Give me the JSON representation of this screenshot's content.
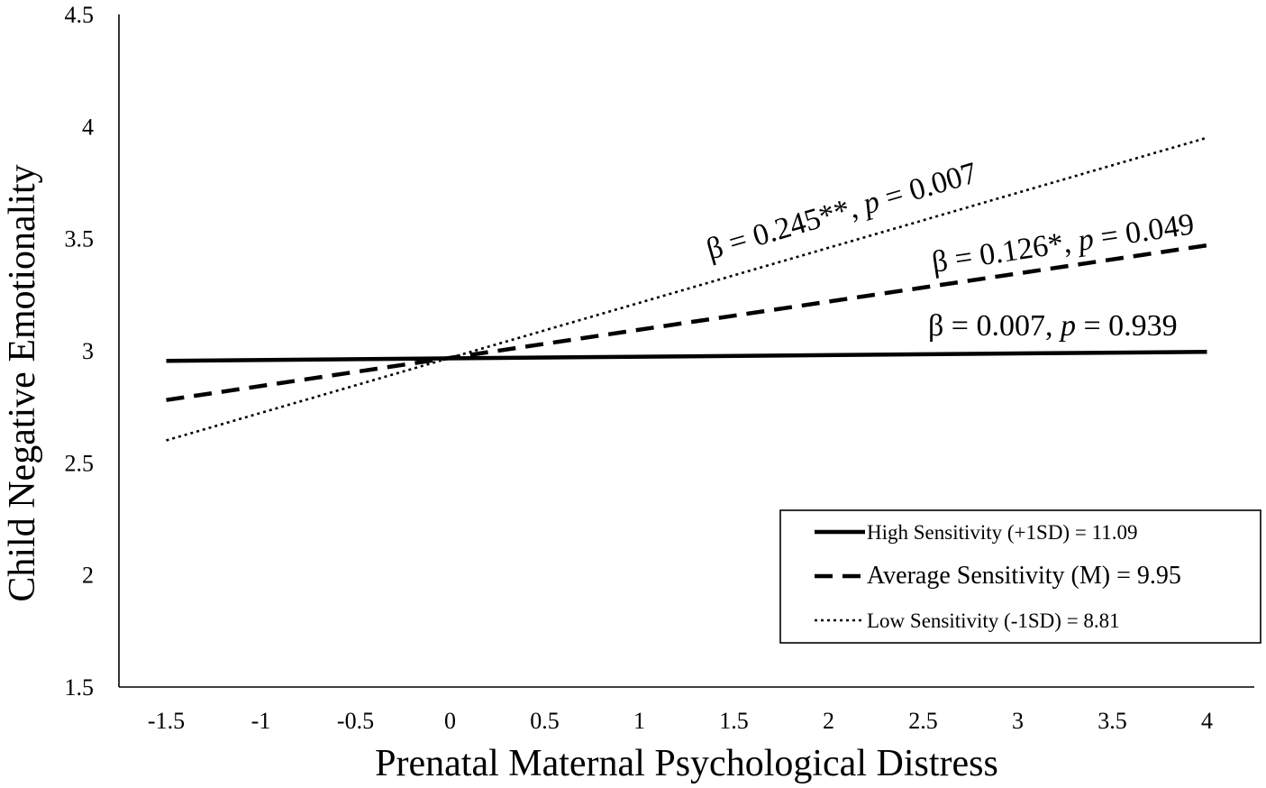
{
  "chart_data": {
    "type": "line",
    "title": "",
    "xlabel": "Prenatal Maternal Psychological Distress",
    "ylabel": "Child Negative Emotionality",
    "xlim": [
      -1.75,
      4.25
    ],
    "ylim": [
      1.5,
      4.5
    ],
    "x_ticks": [
      -1.5,
      -1,
      -0.5,
      0,
      0.5,
      1,
      1.5,
      2,
      2.5,
      3,
      3.5,
      4
    ],
    "x_tick_labels": [
      "-1.5",
      "-1",
      "-0.5",
      "0",
      "0.5",
      "1",
      "1.5",
      "2",
      "2.5",
      "3",
      "3.5",
      "4"
    ],
    "y_ticks": [
      1.5,
      2,
      2.5,
      3,
      3.5,
      4,
      4.5
    ],
    "y_tick_labels": [
      "1.5",
      "2",
      "2.5",
      "3",
      "3.5",
      "4",
      "4.5"
    ],
    "grid": false,
    "legend_position": "bottom-right",
    "series": [
      {
        "name": "High Sensitivity (+1SD) = 11.09",
        "style": "solid",
        "color": "#000000",
        "x": [
          -1.5,
          4
        ],
        "y": [
          2.955,
          2.995
        ],
        "annotation": {
          "beta": "β = 0.007, ",
          "p_label": "p",
          "p_value": " = 0.939"
        }
      },
      {
        "name": "Average Sensitivity (M) = 9.95",
        "style": "dashed",
        "color": "#000000",
        "x": [
          -1.5,
          4
        ],
        "y": [
          2.78,
          3.47
        ],
        "annotation": {
          "beta": "β = 0.126*, ",
          "p_label": "p",
          "p_value": " = 0.049"
        }
      },
      {
        "name": "Low Sensitivity (-1SD) = 8.81",
        "style": "dotted",
        "color": "#000000",
        "x": [
          -1.5,
          4
        ],
        "y": [
          2.6,
          3.95
        ],
        "annotation": {
          "beta": "β = 0.245**, ",
          "p_label": "p",
          "p_value": " = 0.007"
        }
      }
    ]
  }
}
